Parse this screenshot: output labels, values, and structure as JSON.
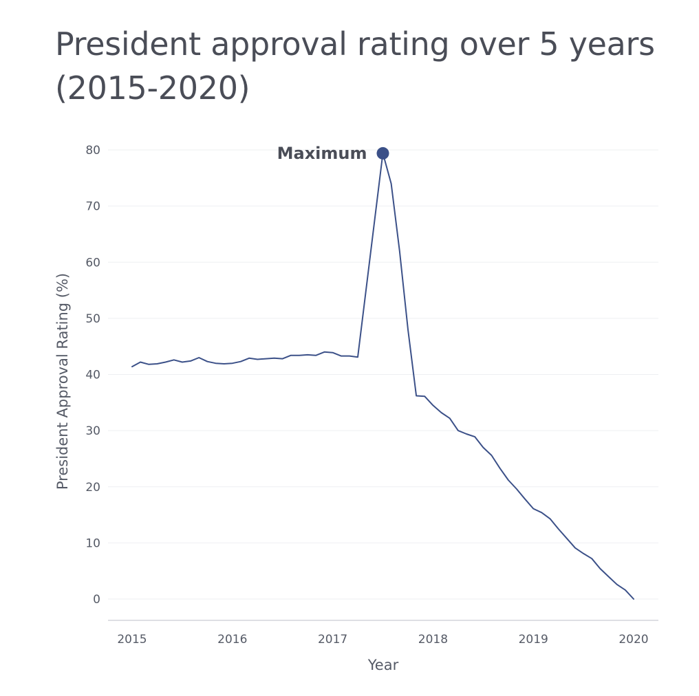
{
  "chart_data": {
    "type": "line",
    "title": "President approval rating over 5 years (2015-2020)",
    "xlabel": "Year",
    "ylabel": "President Approval Rating (%)",
    "xlim": [
      2014.75,
      2020.25
    ],
    "ylim": [
      -4,
      82
    ],
    "x_ticks": [
      2015,
      2016,
      2017,
      2018,
      2019,
      2020
    ],
    "y_ticks": [
      0,
      10,
      20,
      30,
      40,
      50,
      60,
      70,
      80
    ],
    "grid": "horizontal",
    "legend": "none",
    "series": [
      {
        "color": "#3b5088",
        "x": [
          2015.0,
          2015.083,
          2015.167,
          2015.25,
          2015.333,
          2015.417,
          2015.5,
          2015.583,
          2015.667,
          2015.75,
          2015.833,
          2015.917,
          2016.0,
          2016.083,
          2016.167,
          2016.25,
          2016.333,
          2016.417,
          2016.5,
          2016.583,
          2016.667,
          2016.75,
          2016.833,
          2016.917,
          2017.0,
          2017.083,
          2017.167,
          2017.25,
          2017.5,
          2017.583,
          2017.667,
          2017.75,
          2017.833,
          2017.917,
          2018.0,
          2018.083,
          2018.167,
          2018.25,
          2018.333,
          2018.417,
          2018.5,
          2018.583,
          2018.667,
          2018.75,
          2018.833,
          2018.917,
          2019.0,
          2019.083,
          2019.167,
          2019.25,
          2019.333,
          2019.417,
          2019.5,
          2019.583,
          2019.667,
          2019.75,
          2019.833,
          2019.917,
          2020.0
        ],
        "y": [
          41.4,
          42.2,
          41.8,
          41.9,
          42.2,
          42.6,
          42.2,
          42.4,
          43.0,
          42.3,
          42.0,
          41.9,
          42.0,
          42.3,
          42.9,
          42.7,
          42.8,
          42.9,
          42.8,
          43.4,
          43.4,
          43.5,
          43.4,
          44.0,
          43.9,
          43.3,
          43.3,
          43.1,
          79.4,
          74.0,
          62.0,
          48.0,
          36.2,
          36.1,
          34.5,
          33.2,
          32.2,
          30.0,
          29.4,
          28.9,
          27.0,
          25.6,
          23.3,
          21.2,
          19.6,
          17.8,
          16.1,
          15.4,
          14.3,
          12.5,
          10.8,
          9.1,
          8.1,
          7.2,
          5.4,
          4.0,
          2.6,
          1.6,
          0.0
        ]
      }
    ],
    "annotations": [
      {
        "label": "Maximum",
        "x": 2017.5,
        "y": 79.4
      }
    ]
  }
}
